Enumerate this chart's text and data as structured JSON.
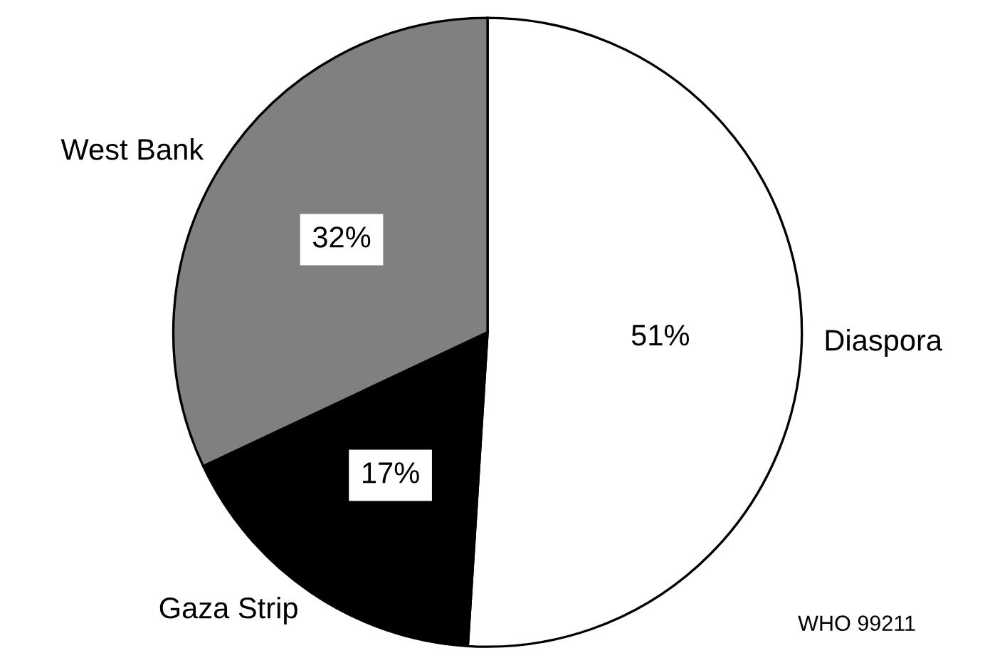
{
  "chart_data": {
    "type": "pie",
    "categories": [
      "Diaspora",
      "Gaza Strip",
      "West Bank"
    ],
    "values": [
      51,
      17,
      32
    ],
    "colors": [
      "#ffffff",
      "#000000",
      "#808080"
    ],
    "value_labels": [
      "51%",
      "17%",
      "32%"
    ],
    "legend": false,
    "annotations": [
      "WHO 99211"
    ]
  }
}
